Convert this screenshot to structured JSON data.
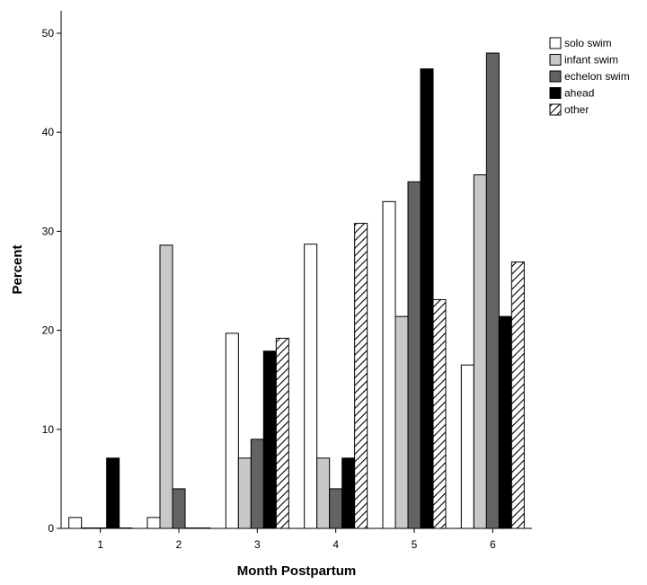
{
  "chart_data": {
    "type": "bar",
    "title": "",
    "xlabel": "Month Postpartum",
    "ylabel": "Percent",
    "ylim": [
      0,
      50
    ],
    "yticks": [
      0,
      10,
      20,
      30,
      40,
      50
    ],
    "grid": false,
    "legend_position": "top-right",
    "categories": [
      "1",
      "2",
      "3",
      "4",
      "5",
      "6"
    ],
    "series": [
      {
        "name": "solo swim",
        "fill": "#ffffff",
        "pattern": "solid",
        "values": [
          1.1,
          1.1,
          19.7,
          28.7,
          33.0,
          16.5
        ]
      },
      {
        "name": "infant swim",
        "fill": "#c8c8c8",
        "pattern": "solid",
        "values": [
          0.0,
          28.6,
          7.1,
          7.1,
          21.4,
          35.7
        ]
      },
      {
        "name": "echelon swim",
        "fill": "#636363",
        "pattern": "solid",
        "values": [
          0.0,
          4.0,
          9.0,
          4.0,
          35.0,
          48.0
        ]
      },
      {
        "name": "ahead",
        "fill": "#000000",
        "pattern": "solid",
        "values": [
          7.1,
          0.0,
          17.9,
          7.1,
          46.4,
          21.4
        ]
      },
      {
        "name": "other",
        "fill": "#ffffff",
        "pattern": "diagonal-hatch",
        "values": [
          0.0,
          0.0,
          19.2,
          30.8,
          23.1,
          26.9
        ]
      }
    ]
  }
}
